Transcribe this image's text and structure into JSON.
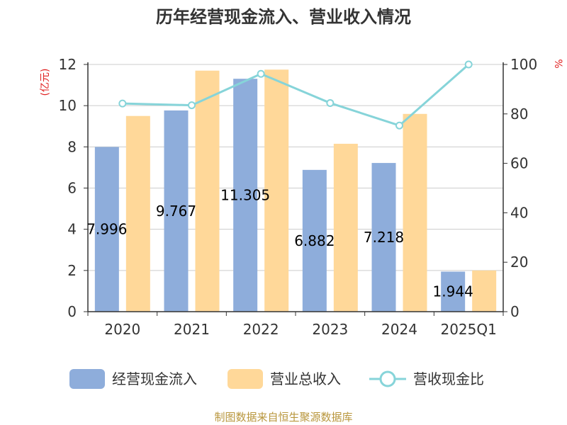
{
  "colors": {
    "cashflow": "#8EADDB",
    "revenue": "#FFD899",
    "ratio": "#86D4D9",
    "unit_left": "#E02020",
    "unit_right": "#E02020",
    "source": "#B8963C",
    "grid": "#CCCCCC",
    "axis": "#333333"
  },
  "chart_data": {
    "type": "bar",
    "title": "历年经营现金流入、营业收入情况",
    "categories": [
      "2020",
      "2021",
      "2022",
      "2023",
      "2024",
      "2025Q1"
    ],
    "y_left": {
      "unit": "(亿元)",
      "ylim": [
        0,
        12
      ],
      "ticks": [
        "0",
        "2",
        "4",
        "6",
        "8",
        "10",
        "12"
      ]
    },
    "y_right": {
      "unit": "%",
      "ylim": [
        0,
        100
      ],
      "ticks": [
        "0",
        "20",
        "40",
        "60",
        "80",
        "100"
      ]
    },
    "series": [
      {
        "name": "经营现金流入",
        "type": "bar",
        "axis": "left",
        "values": [
          7.996,
          9.767,
          11.305,
          6.882,
          7.218,
          1.944
        ],
        "labels": [
          "7.996",
          "9.767",
          "11.305",
          "6.882",
          "7.218",
          "1.944"
        ]
      },
      {
        "name": "营业总收入",
        "type": "bar",
        "axis": "left",
        "values": [
          9.5,
          11.7,
          11.75,
          8.15,
          9.6,
          2.0
        ]
      },
      {
        "name": "营收现金比",
        "type": "line",
        "axis": "right",
        "values": [
          84.2,
          83.5,
          96.2,
          84.4,
          75.3,
          100.0
        ]
      }
    ],
    "grid": true,
    "legend_position": "bottom"
  },
  "source_text": "制图数据来自恒生聚源数据库"
}
